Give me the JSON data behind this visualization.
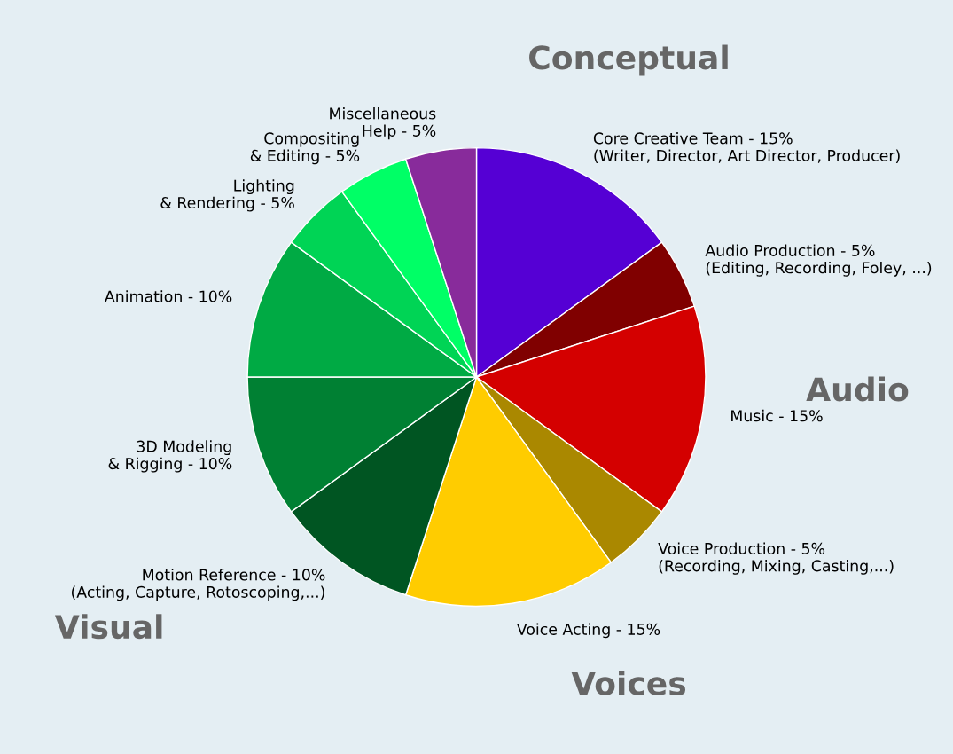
{
  "chart_data": {
    "type": "pie",
    "categories": [
      "Core Creative Team - 15%\n(Writer, Director, Art Director, Producer)",
      "Audio Production - 5%\n(Editing, Recording, Foley, ...)",
      "Music - 15%",
      "Voice Production - 5%\n(Recording, Mixing, Casting,...)",
      "Voice Acting - 15%",
      "Motion Reference - 10%\n(Acting, Capture, Rotoscoping,...)",
      "3D Modeling\n& Rigging - 10%",
      "Animation - 10%",
      "Lighting\n& Rendering - 5%",
      "Compositing\n& Editing - 5%",
      "Miscellaneous\nHelp - 5%"
    ],
    "values": [
      15,
      5,
      15,
      5,
      15,
      10,
      10,
      10,
      5,
      5,
      5
    ],
    "colors": [
      "#5500d4",
      "#800000",
      "#d40000",
      "#aa8800",
      "#ffcc00",
      "#005522",
      "#008033",
      "#00aa44",
      "#00d455",
      "#00ff66",
      "#882b9b"
    ],
    "annotations": [
      "Conceptual",
      "Audio",
      "Voices",
      "Visual"
    ]
  }
}
